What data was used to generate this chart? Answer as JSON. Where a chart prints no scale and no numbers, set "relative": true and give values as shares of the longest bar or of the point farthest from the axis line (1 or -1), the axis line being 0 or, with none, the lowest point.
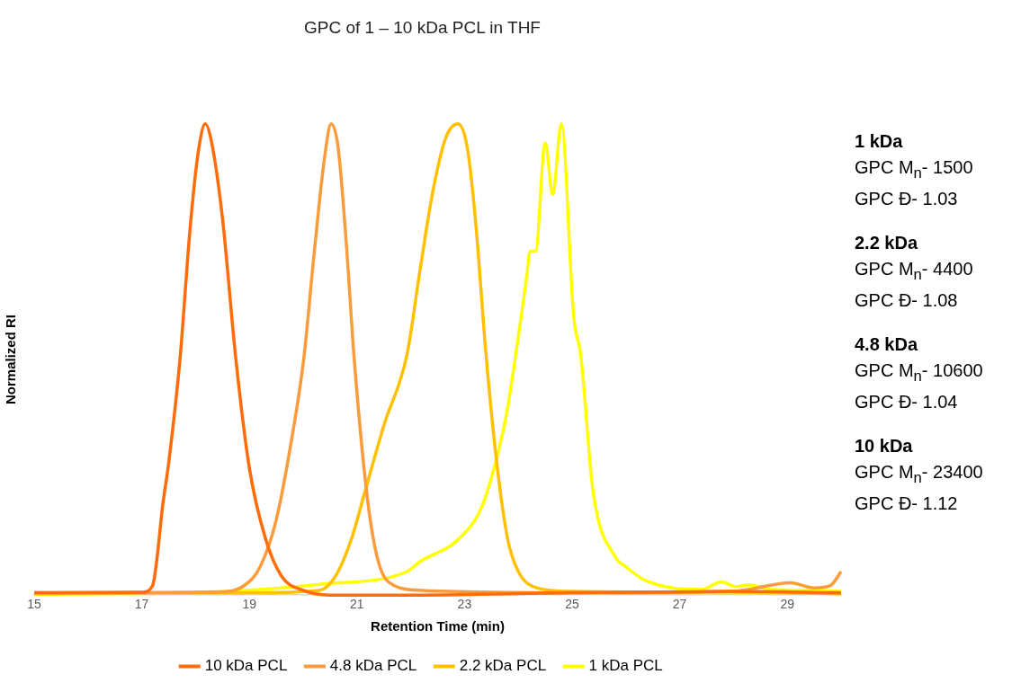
{
  "chart_data": {
    "type": "line",
    "title": "GPC of 1 – 10 kDa PCL in THF",
    "xlabel": "Retention Time (min)",
    "ylabel": "Normalized RI",
    "relative": true,
    "xlim": [
      15,
      30
    ],
    "xticks": [
      15,
      17,
      19,
      21,
      23,
      25,
      27,
      29
    ],
    "grid": false,
    "legend": "bottom",
    "marker": "none",
    "series": [
      {
        "name": "10 kDa PCL",
        "color": "#ff6d0a",
        "x": [
          15,
          17,
          17.2,
          17.4,
          17.5,
          17.71,
          17.9,
          18.05,
          18.18,
          18.3,
          18.5,
          18.75,
          19,
          19.3,
          19.6,
          20,
          20.5,
          22,
          25,
          28,
          30
        ],
        "values": [
          0.005,
          0.006,
          0.02,
          0.2,
          0.28,
          0.5,
          0.78,
          0.94,
          1,
          0.96,
          0.8,
          0.5,
          0.27,
          0.12,
          0.04,
          0.01,
          0,
          0,
          0.005,
          0.008,
          0.005
        ]
      },
      {
        "name": "4.8 kDa PCL",
        "color": "#fa9b3c",
        "x": [
          15,
          18.5,
          18.9,
          19.2,
          19.5,
          19.8,
          20.01,
          20.2,
          20.4,
          20.52,
          20.65,
          20.8,
          20.95,
          21.2,
          21.4,
          21.7,
          22.2,
          25,
          28,
          29.06,
          29.5,
          29.8,
          30
        ],
        "values": [
          0.005,
          0.007,
          0.02,
          0.06,
          0.16,
          0.34,
          0.5,
          0.72,
          0.93,
          1,
          0.95,
          0.75,
          0.5,
          0.2,
          0.07,
          0.02,
          0.01,
          0.005,
          0.008,
          0.026,
          0.015,
          0.02,
          0.05
        ]
      },
      {
        "name": "2.2 kDa PCL",
        "color": "#ffc000",
        "x": [
          15,
          19,
          20.3,
          20.6,
          20.9,
          21.15,
          21.5,
          21.93,
          22.16,
          22.4,
          22.65,
          22.88,
          23.05,
          23.2,
          23.4,
          23.6,
          23.8,
          24,
          24.36,
          25,
          28,
          30
        ],
        "values": [
          0.003,
          0.005,
          0.01,
          0.04,
          0.12,
          0.22,
          0.36,
          0.51,
          0.68,
          0.85,
          0.97,
          1,
          0.95,
          0.8,
          0.51,
          0.28,
          0.12,
          0.05,
          0.015,
          0.008,
          0.006,
          0.003
        ]
      },
      {
        "name": "1 kDa PCL",
        "color": "#ffff00",
        "x": [
          15,
          18,
          20.43,
          21.93,
          22.16,
          22.9,
          23.33,
          23.64,
          23.79,
          23.99,
          24.15,
          24.22,
          24.32,
          24.5,
          24.64,
          24.8,
          25.03,
          25.16,
          25.39,
          25.81,
          26,
          26.38,
          27.4,
          27.78,
          28.05,
          28.29,
          28.7,
          29.5,
          30
        ],
        "values": [
          0.002,
          0.005,
          0.024,
          0.05,
          0.07,
          0.12,
          0.19,
          0.31,
          0.39,
          0.54,
          0.67,
          0.73,
          0.73,
          0.96,
          0.85,
          1,
          0.59,
          0.51,
          0.22,
          0.08,
          0.06,
          0.03,
          0.012,
          0.028,
          0.018,
          0.022,
          0.012,
          0.01,
          0.008
        ]
      }
    ],
    "annotations": [
      "1 kDa",
      "GPC M$_{n}$- 1500",
      "GPC Đ- 1.03",
      "2.2 kDa",
      "GPC M$_{n}$- 4400",
      "GPC Đ- 1.08",
      "4.8 kDa",
      "GPC M$_{n}$- 10600",
      "GPC Đ- 1.04",
      "10 kDa",
      "GPC M$_{n}$- 23400",
      "GPC Đ- 1.12"
    ]
  }
}
